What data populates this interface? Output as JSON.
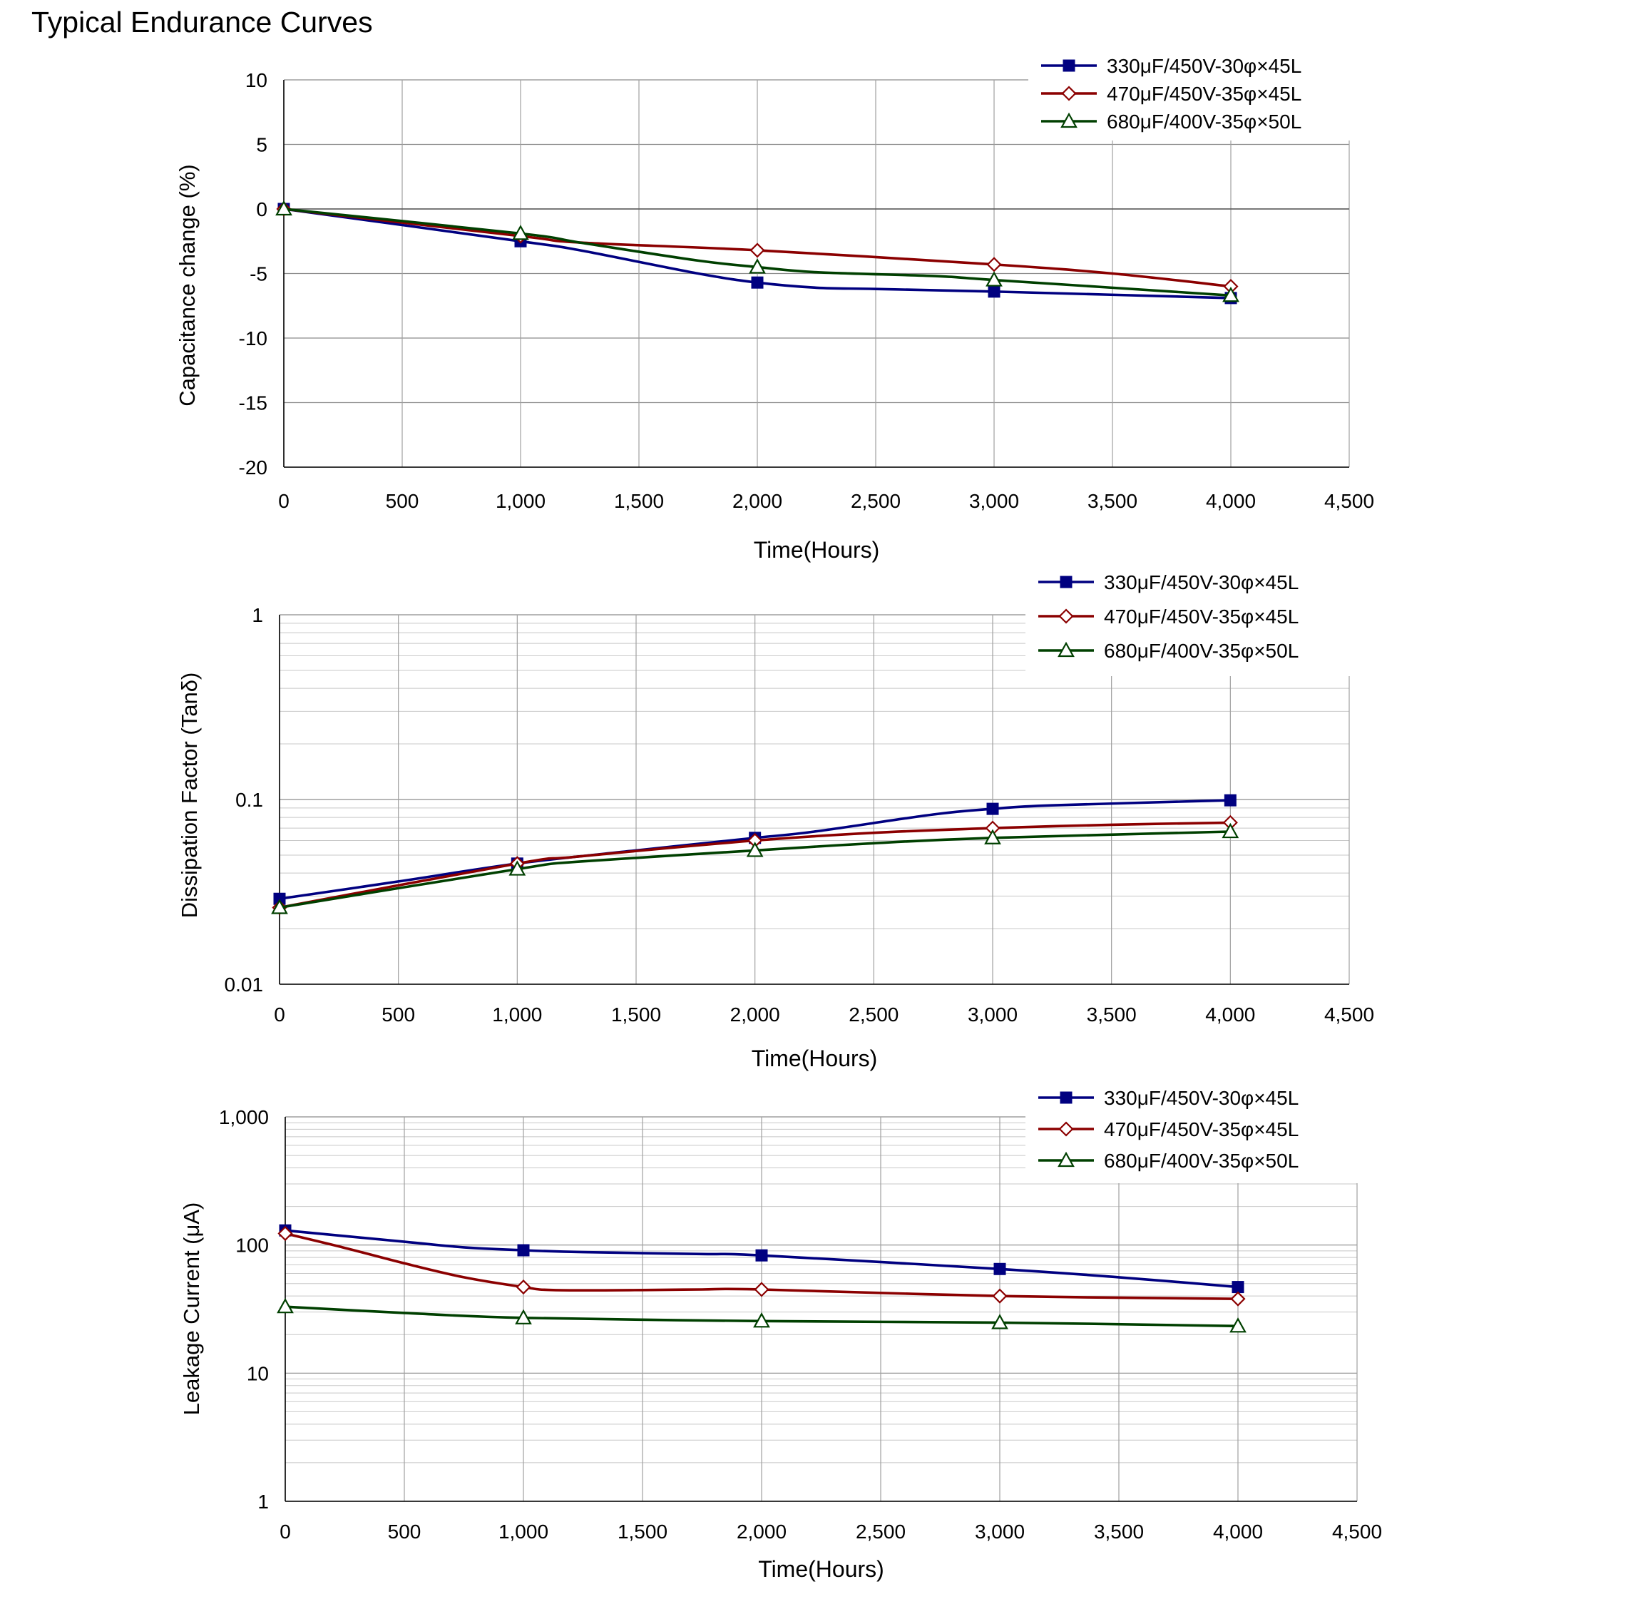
{
  "page": {
    "title": "Typical Endurance Curves"
  },
  "chart_data": [
    {
      "type": "line",
      "scale": "linear",
      "ylabel": "Capacitance change (%)",
      "xlabel": "Time(Hours)",
      "xlim": [
        0,
        4500
      ],
      "ylim": [
        -20,
        10
      ],
      "xticks": [
        0,
        500,
        1000,
        1500,
        2000,
        2500,
        3000,
        3500,
        4000,
        4500
      ],
      "xtick_labels": [
        "0",
        "500",
        "1,000",
        "1,500",
        "2,000",
        "2,500",
        "3,000",
        "3,500",
        "4,000",
        "4,500"
      ],
      "yticks": [
        10,
        5,
        0,
        -5,
        -10,
        -15,
        -20
      ],
      "ytick_labels": [
        "10",
        "5",
        "0",
        "-5",
        "-10",
        "-15",
        "-20"
      ],
      "grid": true,
      "legend_position": "top-right",
      "series": [
        {
          "name": "330μF/450V-30φ×45L",
          "color": "#000080",
          "marker": "square",
          "x": [
            0,
            1000,
            1250,
            1750,
            2000,
            2250,
            2500,
            3000,
            4000
          ],
          "y": [
            0,
            -2.5,
            -3.2,
            -5.0,
            -5.7,
            -6.1,
            -6.2,
            -6.4,
            -6.9
          ],
          "marker_x": [
            0,
            1000,
            2000,
            3000,
            4000
          ]
        },
        {
          "name": "470μF/450V-35φ×45L",
          "color": "#8b0000",
          "marker": "diamond",
          "x": [
            0,
            1000,
            1250,
            2000,
            3000,
            3500,
            4000
          ],
          "y": [
            0,
            -2.1,
            -2.6,
            -3.2,
            -4.3,
            -5.0,
            -6.0
          ],
          "marker_x": [
            0,
            1000,
            2000,
            3000,
            4000
          ]
        },
        {
          "name": "680μF/400V-35φ×50L",
          "color": "#004000",
          "marker": "triangle",
          "x": [
            0,
            1000,
            1250,
            1750,
            2000,
            2250,
            2750,
            3000,
            4000
          ],
          "y": [
            0,
            -1.9,
            -2.6,
            -4.0,
            -4.5,
            -4.9,
            -5.2,
            -5.5,
            -6.7
          ],
          "marker_x": [
            0,
            1000,
            2000,
            3000,
            4000
          ]
        }
      ]
    },
    {
      "type": "line",
      "scale": "log",
      "ylabel": "Dissipation Factor (Tanδ)",
      "xlabel": "Time(Hours)",
      "xlim": [
        0,
        4500
      ],
      "ylim": [
        0.01,
        1
      ],
      "xticks": [
        0,
        500,
        1000,
        1500,
        2000,
        2500,
        3000,
        3500,
        4000,
        4500
      ],
      "xtick_labels": [
        "0",
        "500",
        "1,000",
        "1,500",
        "2,000",
        "2,500",
        "3,000",
        "3,500",
        "4,000",
        "4,500"
      ],
      "yticks": [
        1,
        0.1,
        0.01
      ],
      "ytick_labels": [
        "1",
        "0.1",
        "0.01"
      ],
      "grid": true,
      "legend_position": "top-right",
      "series": [
        {
          "name": "330μF/450V-30φ×45L",
          "color": "#000080",
          "marker": "square",
          "x": [
            0,
            500,
            1000,
            1500,
            2000,
            2250,
            2750,
            3000,
            3250,
            4000
          ],
          "y": [
            0.029,
            0.036,
            0.045,
            0.053,
            0.062,
            0.067,
            0.083,
            0.089,
            0.093,
            0.099
          ],
          "marker_x": [
            0,
            1000,
            2000,
            3000,
            4000
          ]
        },
        {
          "name": "470μF/450V-35φ×45L",
          "color": "#8b0000",
          "marker": "diamond",
          "x": [
            0,
            1000,
            1250,
            2000,
            2500,
            3000,
            3500,
            4000
          ],
          "y": [
            0.026,
            0.045,
            0.049,
            0.06,
            0.066,
            0.07,
            0.073,
            0.075
          ],
          "marker_x": [
            0,
            1000,
            2000,
            3000,
            4000
          ]
        },
        {
          "name": "680μF/400V-35φ×50L",
          "color": "#004000",
          "marker": "triangle",
          "x": [
            0,
            1000,
            1250,
            2000,
            2500,
            3000,
            4000
          ],
          "y": [
            0.026,
            0.042,
            0.046,
            0.053,
            0.058,
            0.062,
            0.067
          ],
          "marker_x": [
            0,
            1000,
            2000,
            3000,
            4000
          ]
        }
      ]
    },
    {
      "type": "line",
      "scale": "log",
      "ylabel": "Leakage Current (μA)",
      "xlabel": "Time(Hours)",
      "xlim": [
        0,
        4500
      ],
      "ylim": [
        1,
        1000
      ],
      "xticks": [
        0,
        500,
        1000,
        1500,
        2000,
        2500,
        3000,
        3500,
        4000,
        4500
      ],
      "xtick_labels": [
        "0",
        "500",
        "1,000",
        "1,500",
        "2,000",
        "2,500",
        "3,000",
        "3,500",
        "4,000",
        "4,500"
      ],
      "yticks": [
        1000,
        100,
        10,
        1
      ],
      "ytick_labels": [
        "1,000",
        "100",
        "10",
        "1"
      ],
      "grid": true,
      "legend_position": "top-right",
      "series": [
        {
          "name": "330μF/450V-30φ×45L",
          "color": "#000080",
          "marker": "square",
          "x": [
            0,
            500,
            750,
            1000,
            1250,
            1750,
            2000,
            3000,
            3500,
            4000
          ],
          "y": [
            130,
            106,
            96,
            91,
            88,
            85,
            83,
            65,
            56,
            47
          ],
          "marker_x": [
            0,
            1000,
            2000,
            3000,
            4000
          ]
        },
        {
          "name": "470μF/450V-35φ×45L",
          "color": "#8b0000",
          "marker": "diamond",
          "x": [
            0,
            250,
            500,
            750,
            1000,
            1125,
            1500,
            1750,
            2000,
            3000,
            4000
          ],
          "y": [
            123,
            95,
            72,
            56,
            47,
            44.5,
            44.5,
            45,
            45,
            40,
            38
          ],
          "marker_x": [
            0,
            1000,
            2000,
            3000,
            4000
          ]
        },
        {
          "name": "680μF/400V-35φ×50L",
          "color": "#004000",
          "marker": "triangle",
          "x": [
            0,
            500,
            1000,
            2000,
            3000,
            4000
          ],
          "y": [
            33,
            29.5,
            27,
            25.5,
            24.8,
            23.3
          ],
          "marker_x": [
            0,
            1000,
            2000,
            3000,
            4000
          ]
        }
      ]
    }
  ]
}
